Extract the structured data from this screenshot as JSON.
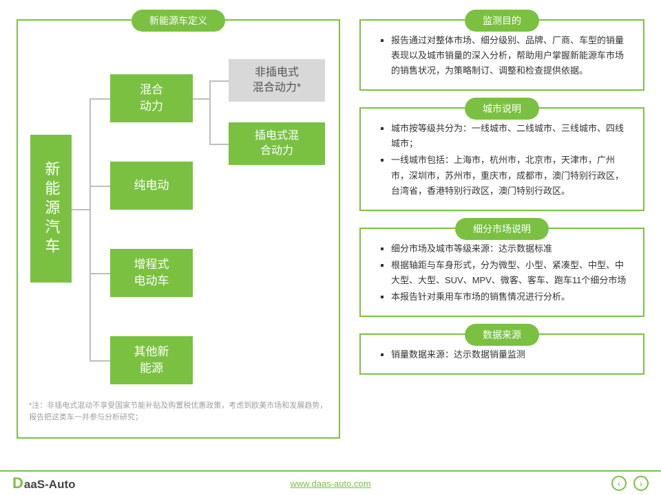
{
  "colors": {
    "brand": "#7ac142",
    "muted": "#d8d8d8",
    "text": "#333",
    "foot": "#9e9e9e"
  },
  "left": {
    "title": "新能源车定义",
    "root": "新能源汽车",
    "lvl2": {
      "hybrid": "混合\n动力",
      "bev": "纯电动",
      "erev": "增程式\n电动车",
      "other": "其他新\n能源"
    },
    "lvl3": {
      "nphev": "非插电式\n混合动力*",
      "phev": "插电式混\n合动力"
    },
    "footnote": "*注：非插电式混动不享受国家节能补贴及购置税优惠政策，考虑到欧美市场和发展趋势，报告把这类车一并参与分析研究；"
  },
  "right": {
    "purpose": {
      "title": "监测目的",
      "items": [
        "报告通过对整体市场、细分级别、品牌、厂商、车型的销量表现以及城市销量的深入分析，帮助用户掌握新能源车市场的销售状况，为策略制订、调整和检查提供依据。"
      ]
    },
    "city": {
      "title": "城市说明",
      "items": [
        "城市按等级共分为：一线城市、二线城市、三线城市、四线城市；",
        "一线城市包括：上海市，杭州市，北京市，天津市，广州市，深圳市，苏州市，重庆市，成都市，澳门特别行政区，台湾省，香港特别行政区，澳门特别行政区。"
      ]
    },
    "segment": {
      "title": "细分市场说明",
      "items": [
        "细分市场及城市等级来源：达示数据标准",
        "根据轴距与车身形式，分为微型、小型、紧凑型、中型、中大型、大型、SUV、MPV、微客、客车、跑车11个细分市场",
        "本报告针对乘用车市场的销售情况进行分析。"
      ]
    },
    "source": {
      "title": "数据来源",
      "items": [
        "销量数据来源：达示数据销量监测"
      ]
    }
  },
  "footer": {
    "logo_d": "D",
    "logo_rest": "aaS-Auto",
    "url": "www.daas-auto.com",
    "prev": "‹",
    "next": "›"
  }
}
